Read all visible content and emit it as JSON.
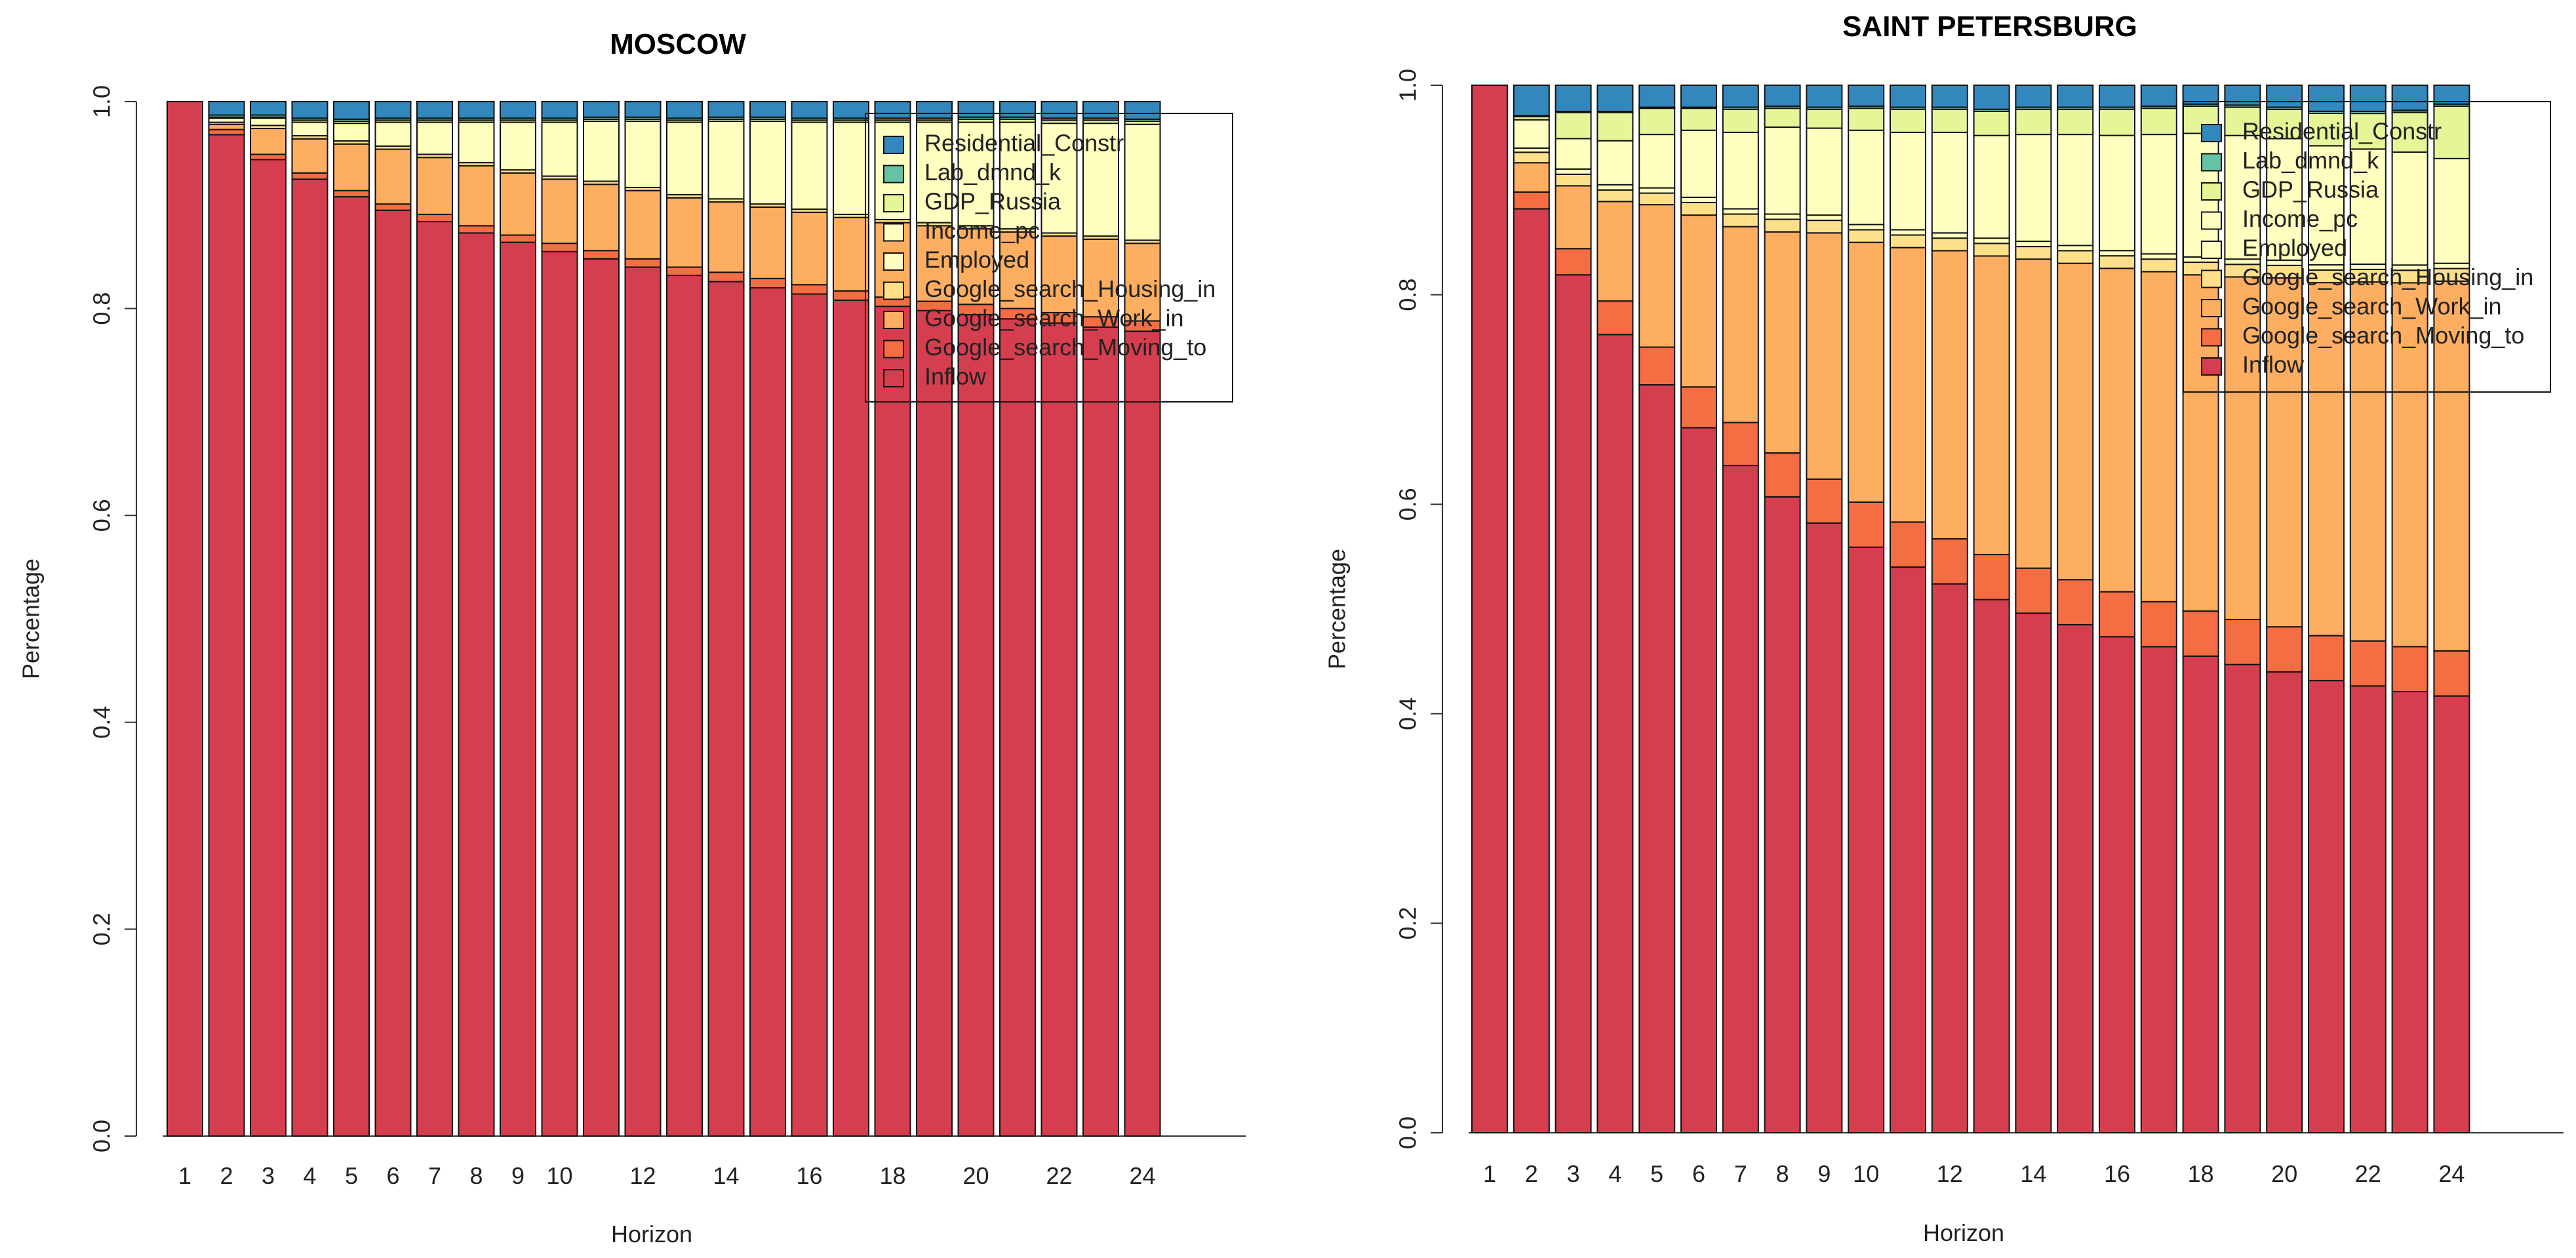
{
  "chart_data": [
    {
      "type": "bar",
      "title": "MOSCOW",
      "xlabel": "Horizon",
      "ylabel": "Percentage",
      "ylim": [
        0,
        1
      ],
      "y_ticks": [
        "0.0",
        "0.2",
        "0.4",
        "0.6",
        "0.8",
        "1.0"
      ],
      "x_ticks": [
        "1",
        "2",
        "3",
        "4",
        "5",
        "6",
        "7",
        "8",
        "9",
        "10",
        "12",
        "14",
        "16",
        "18",
        "20",
        "22",
        "24"
      ],
      "categories": [
        "1",
        "2",
        "3",
        "4",
        "5",
        "6",
        "7",
        "8",
        "9",
        "10",
        "11",
        "12",
        "13",
        "14",
        "15",
        "16",
        "17",
        "18",
        "19",
        "20",
        "21",
        "22",
        "23",
        "24"
      ],
      "legend_position": "top-right",
      "series": [
        {
          "name": "Inflow",
          "values": [
            1.0,
            0.968,
            0.944,
            0.925,
            0.908,
            0.895,
            0.884,
            0.873,
            0.864,
            0.855,
            0.848,
            0.84,
            0.832,
            0.826,
            0.82,
            0.814,
            0.808,
            0.802,
            0.798,
            0.794,
            0.79,
            0.786,
            0.782,
            0.778
          ]
        },
        {
          "name": "Google_search_Moving_to",
          "values": [
            0,
            0.005,
            0.005,
            0.006,
            0.006,
            0.006,
            0.007,
            0.007,
            0.007,
            0.008,
            0.008,
            0.008,
            0.008,
            0.009,
            0.009,
            0.009,
            0.009,
            0.009,
            0.009,
            0.01,
            0.01,
            0.01,
            0.01,
            0.01
          ]
        },
        {
          "name": "Google_search_Work_in",
          "values": [
            0,
            0.005,
            0.025,
            0.033,
            0.045,
            0.053,
            0.055,
            0.058,
            0.06,
            0.062,
            0.064,
            0.066,
            0.067,
            0.068,
            0.069,
            0.07,
            0.071,
            0.072,
            0.073,
            0.073,
            0.074,
            0.074,
            0.075,
            0.075
          ]
        },
        {
          "name": "Google_search_Housing_in",
          "values": [
            0,
            0.002,
            0.003,
            0.003,
            0.003,
            0.003,
            0.003,
            0.003,
            0.003,
            0.003,
            0.003,
            0.003,
            0.003,
            0.003,
            0.003,
            0.003,
            0.003,
            0.003,
            0.003,
            0.003,
            0.003,
            0.003,
            0.003,
            0.003
          ]
        },
        {
          "name": "Employed",
          "values": [
            0,
            0.0,
            0.0,
            0.0,
            0.0,
            0.0,
            0.0,
            0.0,
            0.0,
            0.0,
            0.0,
            0.0,
            0.0,
            0.0,
            0.0,
            0.0,
            0.0,
            0.0,
            0.0,
            0.0,
            0.0,
            0.0,
            0.0,
            0.0
          ]
        },
        {
          "name": "Income_pc",
          "values": [
            0,
            0.004,
            0.007,
            0.013,
            0.017,
            0.023,
            0.031,
            0.039,
            0.046,
            0.052,
            0.058,
            0.064,
            0.07,
            0.075,
            0.08,
            0.084,
            0.089,
            0.094,
            0.097,
            0.1,
            0.103,
            0.106,
            0.109,
            0.112
          ]
        },
        {
          "name": "GDP_Russia",
          "values": [
            0,
            0.001,
            0.001,
            0.002,
            0.002,
            0.002,
            0.002,
            0.002,
            0.002,
            0.002,
            0.002,
            0.002,
            0.002,
            0.002,
            0.002,
            0.002,
            0.002,
            0.002,
            0.002,
            0.003,
            0.003,
            0.003,
            0.003,
            0.003
          ]
        },
        {
          "name": "Lab_dmnd_k",
          "values": [
            0,
            0.002,
            0.002,
            0.002,
            0.002,
            0.002,
            0.002,
            0.002,
            0.002,
            0.002,
            0.002,
            0.002,
            0.002,
            0.002,
            0.002,
            0.002,
            0.002,
            0.002,
            0.002,
            0.002,
            0.002,
            0.002,
            0.002,
            0.002
          ]
        },
        {
          "name": "Residential_Constr",
          "values": [
            0,
            0.013,
            0.013,
            0.016,
            0.017,
            0.016,
            0.016,
            0.016,
            0.016,
            0.016,
            0.015,
            0.015,
            0.016,
            0.015,
            0.015,
            0.016,
            0.016,
            0.016,
            0.016,
            0.015,
            0.015,
            0.016,
            0.016,
            0.017
          ]
        }
      ],
      "legend_entries": [
        "Residential_Constr",
        "Lab_dmnd_k",
        "GDP_Russia",
        "Income_pc",
        "Employed",
        "Google_search_Housing_in",
        "Google_search_Work_in",
        "Google_search_Moving_to",
        "Inflow"
      ]
    },
    {
      "type": "bar",
      "title": "SAINT PETERSBURG",
      "xlabel": "Horizon",
      "ylabel": "Percentage",
      "ylim": [
        0,
        1
      ],
      "y_ticks": [
        "0.0",
        "0.2",
        "0.4",
        "0.6",
        "0.8",
        "1.0"
      ],
      "x_ticks": [
        "1",
        "2",
        "3",
        "4",
        "5",
        "6",
        "7",
        "8",
        "9",
        "10",
        "12",
        "14",
        "16",
        "18",
        "20",
        "22",
        "24"
      ],
      "categories": [
        "1",
        "2",
        "3",
        "4",
        "5",
        "6",
        "7",
        "8",
        "9",
        "10",
        "11",
        "12",
        "13",
        "14",
        "15",
        "16",
        "17",
        "18",
        "19",
        "20",
        "21",
        "22",
        "23",
        "24"
      ],
      "legend_position": "top-right",
      "series": [
        {
          "name": "Inflow",
          "values": [
            1.0,
            0.882,
            0.819,
            0.762,
            0.714,
            0.673,
            0.637,
            0.607,
            0.582,
            0.559,
            0.54,
            0.524,
            0.509,
            0.496,
            0.485,
            0.474,
            0.464,
            0.455,
            0.447,
            0.44,
            0.433,
            0.427,
            0.422,
            0.417
          ]
        },
        {
          "name": "Google_search_Moving_to",
          "values": [
            0,
            0.016,
            0.025,
            0.032,
            0.036,
            0.039,
            0.041,
            0.042,
            0.042,
            0.043,
            0.043,
            0.043,
            0.043,
            0.043,
            0.043,
            0.043,
            0.043,
            0.043,
            0.043,
            0.043,
            0.043,
            0.043,
            0.043,
            0.043
          ]
        },
        {
          "name": "Google_search_Work_in",
          "values": [
            0,
            0.028,
            0.06,
            0.095,
            0.136,
            0.164,
            0.187,
            0.211,
            0.235,
            0.248,
            0.262,
            0.275,
            0.285,
            0.295,
            0.302,
            0.309,
            0.315,
            0.321,
            0.327,
            0.333,
            0.338,
            0.343,
            0.348,
            0.353
          ]
        },
        {
          "name": "Google_search_Housing_in",
          "values": [
            0,
            0.01,
            0.011,
            0.011,
            0.011,
            0.012,
            0.012,
            0.012,
            0.012,
            0.012,
            0.012,
            0.012,
            0.012,
            0.012,
            0.012,
            0.012,
            0.012,
            0.012,
            0.012,
            0.012,
            0.012,
            0.012,
            0.012,
            0.012
          ]
        },
        {
          "name": "Employed",
          "values": [
            0,
            0.004,
            0.005,
            0.005,
            0.005,
            0.005,
            0.005,
            0.005,
            0.005,
            0.005,
            0.005,
            0.005,
            0.005,
            0.005,
            0.005,
            0.005,
            0.005,
            0.005,
            0.005,
            0.005,
            0.005,
            0.005,
            0.005,
            0.005
          ]
        },
        {
          "name": "Income_pc",
          "values": [
            0,
            0.027,
            0.029,
            0.042,
            0.051,
            0.064,
            0.073,
            0.083,
            0.083,
            0.09,
            0.093,
            0.096,
            0.098,
            0.102,
            0.106,
            0.11,
            0.114,
            0.118,
            0.118,
            0.116,
            0.114,
            0.11,
            0.108,
            0.1
          ]
        },
        {
          "name": "GDP_Russia",
          "values": [
            0,
            0.003,
            0.025,
            0.027,
            0.025,
            0.021,
            0.022,
            0.018,
            0.018,
            0.021,
            0.022,
            0.022,
            0.023,
            0.024,
            0.024,
            0.025,
            0.025,
            0.026,
            0.027,
            0.028,
            0.031,
            0.034,
            0.038,
            0.05
          ]
        },
        {
          "name": "Lab_dmnd_k",
          "values": [
            0,
            0.001,
            0.001,
            0.001,
            0.001,
            0.001,
            0.002,
            0.002,
            0.002,
            0.002,
            0.002,
            0.002,
            0.002,
            0.002,
            0.002,
            0.002,
            0.002,
            0.002,
            0.002,
            0.002,
            0.002,
            0.002,
            0.002,
            0.002
          ]
        },
        {
          "name": "Residential_Constr",
          "values": [
            0,
            0.029,
            0.025,
            0.025,
            0.021,
            0.021,
            0.021,
            0.02,
            0.021,
            0.02,
            0.021,
            0.021,
            0.021,
            0.021,
            0.021,
            0.021,
            0.02,
            0.018,
            0.019,
            0.021,
            0.025,
            0.025,
            0.024,
            0.018
          ]
        }
      ],
      "legend_entries": [
        "Residential_Constr",
        "Lab_dmnd_k",
        "GDP_Russia",
        "Income_pc",
        "Employed",
        "Google_search_Housing_in",
        "Google_search_Work_in",
        "Google_search_Moving_to",
        "Inflow"
      ]
    }
  ],
  "colors": {
    "Inflow": "#d53e4f",
    "Google_search_Moving_to": "#f46d43",
    "Google_search_Work_in": "#fdae61",
    "Google_search_Housing_in": "#fee08b",
    "Employed": "#ffffbf",
    "Income_pc": "#ffffbf",
    "GDP_Russia": "#e6f598",
    "Lab_dmnd_k": "#66c2a5",
    "Residential_Constr": "#3288bd"
  }
}
